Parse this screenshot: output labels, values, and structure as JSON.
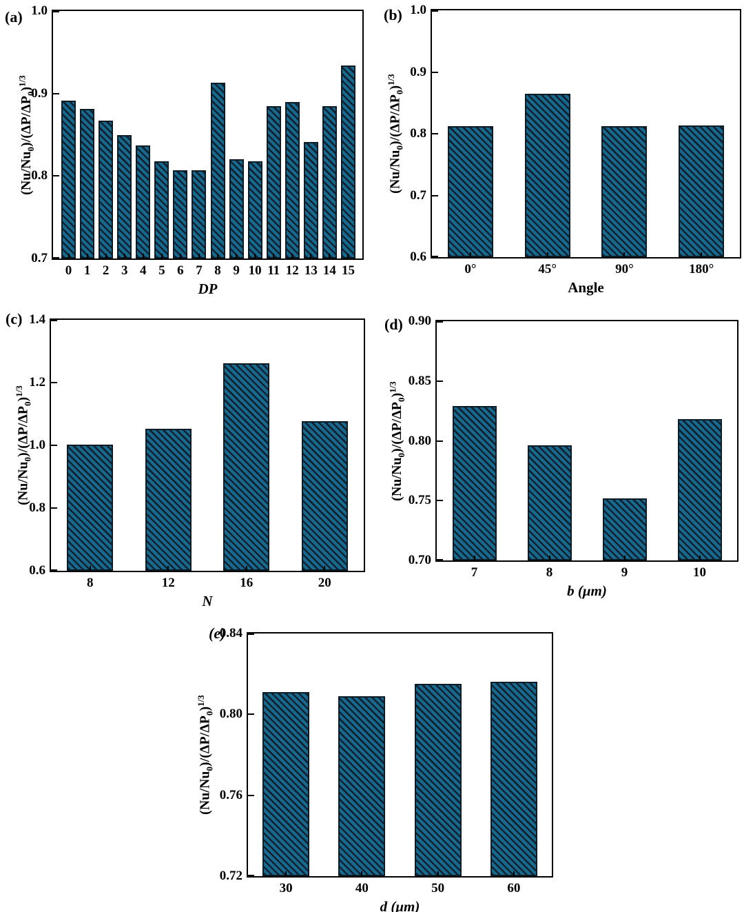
{
  "shared": {
    "ylabel_p1": "(Nu/Nu",
    "ylabel_sub": "0",
    "ylabel_p2": ")/(ΔP/ΔP",
    "ylabel_p3": ")",
    "ylabel_sup": "1/3",
    "ylabel_full": "(Nu/Nu0)/(ΔP/ΔP0)^1/3"
  },
  "colors": {
    "bar_fill": "#1a688c",
    "bar_hatch": "#0d2233",
    "bar_border": "#0c1a24",
    "axis": "#000000",
    "background": "#ffffff"
  },
  "chart_data": [
    {
      "type": "bar",
      "panel_label": "(a)",
      "xlabel": "DP",
      "ylabel": "(Nu/Nu0)/(ΔP/ΔP0)^1/3",
      "categories": [
        "0",
        "1",
        "2",
        "3",
        "4",
        "5",
        "6",
        "7",
        "8",
        "9",
        "10",
        "11",
        "12",
        "13",
        "14",
        "15"
      ],
      "values": [
        0.891,
        0.881,
        0.867,
        0.85,
        0.837,
        0.818,
        0.807,
        0.807,
        0.913,
        0.82,
        0.818,
        0.885,
        0.89,
        0.841,
        0.885,
        0.934
      ],
      "ylim": [
        0.7,
        1.0
      ],
      "ytick_values": [
        0.7,
        0.8,
        0.9,
        1.0
      ],
      "ytick_labels": [
        "0.7",
        "0.8",
        "0.9",
        "1.0"
      ],
      "grid": false,
      "legend": "none",
      "hatch": "diagonal-backslash"
    },
    {
      "type": "bar",
      "panel_label": "(b)",
      "xlabel": "Angle",
      "ylabel": "(Nu/Nu0)/(ΔP/ΔP0)^1/3",
      "categories": [
        "0°",
        "45°",
        "90°",
        "180°"
      ],
      "values": [
        0.812,
        0.865,
        0.812,
        0.813
      ],
      "ylim": [
        0.6,
        1.0
      ],
      "ytick_values": [
        0.6,
        0.7,
        0.8,
        0.9,
        1.0
      ],
      "ytick_labels": [
        "0.6",
        "0.7",
        "0.8",
        "0.9",
        "1.0"
      ],
      "grid": false,
      "legend": "none",
      "hatch": "diagonal-backslash"
    },
    {
      "type": "bar",
      "panel_label": "(c)",
      "xlabel": "N",
      "ylabel": "(Nu/Nu0)/(ΔP/ΔP0)^1/3",
      "categories": [
        "8",
        "12",
        "16",
        "20"
      ],
      "values": [
        1.002,
        1.053,
        1.262,
        1.078
      ],
      "ylim": [
        0.6,
        1.4
      ],
      "ytick_values": [
        0.6,
        0.8,
        1.0,
        1.2,
        1.4
      ],
      "ytick_labels": [
        "0.6",
        "0.8",
        "1.0",
        "1.2",
        "1.4"
      ],
      "grid": false,
      "legend": "none",
      "hatch": "diagonal-backslash"
    },
    {
      "type": "bar",
      "panel_label": "(d)",
      "xlabel": "b (μm)",
      "ylabel": "(Nu/Nu0)/(ΔP/ΔP0)^1/3",
      "categories": [
        "7",
        "8",
        "9",
        "10"
      ],
      "values": [
        0.829,
        0.796,
        0.752,
        0.818
      ],
      "ylim": [
        0.7,
        0.9
      ],
      "ytick_values": [
        0.7,
        0.75,
        0.8,
        0.85,
        0.9
      ],
      "ytick_labels": [
        "0.70",
        "0.75",
        "0.80",
        "0.85",
        "0.90"
      ],
      "grid": false,
      "legend": "none",
      "hatch": "diagonal-backslash"
    },
    {
      "type": "bar",
      "panel_label": "(e)",
      "xlabel": "d (μm)",
      "ylabel": "(Nu/Nu0)/(ΔP/ΔP0)^1/3",
      "categories": [
        "30",
        "40",
        "50",
        "60"
      ],
      "values": [
        0.811,
        0.809,
        0.815,
        0.816
      ],
      "ylim": [
        0.72,
        0.84
      ],
      "ytick_values": [
        0.72,
        0.76,
        0.8,
        0.84
      ],
      "ytick_labels": [
        "0.72",
        "0.76",
        "0.80",
        "0.84"
      ],
      "grid": false,
      "legend": "none",
      "hatch": "diagonal-backslash"
    }
  ]
}
